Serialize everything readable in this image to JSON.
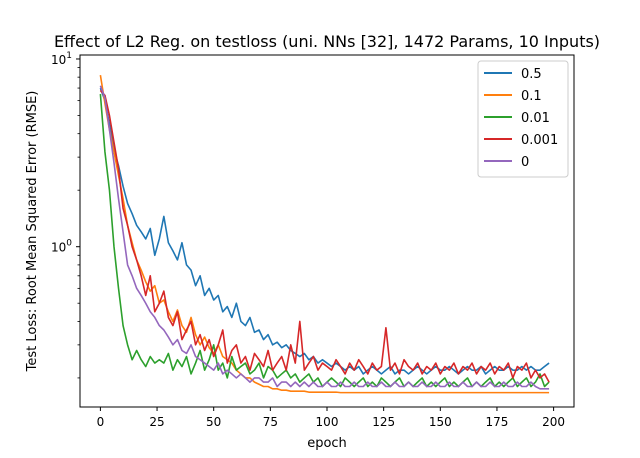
{
  "chart_data": {
    "type": "line",
    "title": "Effect of L2 Reg. on testloss (uni. NNs [32], 1472 Params, 10 Inputs)",
    "xlabel": "epoch",
    "ylabel": "Test Loss: Root Mean Squared Error (RMSE)",
    "xlim": [
      -9,
      209
    ],
    "ylim": [
      0.14,
      10.5
    ],
    "yscale": "log",
    "x_ticks": [
      0,
      25,
      50,
      75,
      100,
      125,
      150,
      175,
      200
    ],
    "y_major_ticks": [
      {
        "value": 1,
        "label": "10^0"
      },
      {
        "value": 10,
        "label": "10^1"
      }
    ],
    "grid": false,
    "legend_position": "top-right",
    "x_step": 2,
    "series": [
      {
        "name": "0.5",
        "color": "#1f77b4",
        "values": [
          7.0,
          6.0,
          4.5,
          3.3,
          2.7,
          2.1,
          1.7,
          1.5,
          1.3,
          1.2,
          1.1,
          1.25,
          0.9,
          1.1,
          1.45,
          1.05,
          0.95,
          0.85,
          1.05,
          0.8,
          0.75,
          0.62,
          0.7,
          0.55,
          0.6,
          0.52,
          0.55,
          0.45,
          0.48,
          0.42,
          0.5,
          0.4,
          0.38,
          0.42,
          0.35,
          0.36,
          0.32,
          0.34,
          0.3,
          0.31,
          0.29,
          0.3,
          0.28,
          0.27,
          0.26,
          0.27,
          0.25,
          0.26,
          0.24,
          0.25,
          0.24,
          0.23,
          0.24,
          0.23,
          0.22,
          0.23,
          0.22,
          0.23,
          0.21,
          0.22,
          0.23,
          0.22,
          0.21,
          0.22,
          0.23,
          0.21,
          0.22,
          0.22,
          0.21,
          0.22,
          0.23,
          0.22,
          0.21,
          0.22,
          0.23,
          0.22,
          0.22,
          0.23,
          0.22,
          0.21,
          0.22,
          0.23,
          0.22,
          0.22,
          0.23,
          0.21,
          0.22,
          0.23,
          0.22,
          0.22,
          0.23,
          0.22,
          0.22,
          0.23,
          0.22,
          0.23,
          0.22,
          0.22,
          0.23,
          0.24
        ]
      },
      {
        "name": "0.1",
        "color": "#ff7f0e",
        "values": [
          8.2,
          5.8,
          4.2,
          3.2,
          2.4,
          1.8,
          1.3,
          1.05,
          0.85,
          0.75,
          0.65,
          0.58,
          0.62,
          0.5,
          0.52,
          0.45,
          0.4,
          0.46,
          0.38,
          0.35,
          0.42,
          0.34,
          0.3,
          0.33,
          0.29,
          0.27,
          0.3,
          0.26,
          0.25,
          0.24,
          0.22,
          0.21,
          0.2,
          0.2,
          0.19,
          0.185,
          0.18,
          0.18,
          0.175,
          0.175,
          0.172,
          0.172,
          0.17,
          0.17,
          0.17,
          0.17,
          0.168,
          0.168,
          0.168,
          0.168,
          0.168,
          0.168,
          0.168,
          0.167,
          0.167,
          0.167,
          0.167,
          0.167,
          0.167,
          0.167,
          0.167,
          0.167,
          0.167,
          0.167,
          0.167,
          0.167,
          0.167,
          0.167,
          0.167,
          0.167,
          0.167,
          0.167,
          0.167,
          0.167,
          0.167,
          0.167,
          0.167,
          0.167,
          0.167,
          0.167,
          0.167,
          0.167,
          0.167,
          0.167,
          0.167,
          0.167,
          0.167,
          0.167,
          0.167,
          0.167,
          0.167,
          0.167,
          0.167,
          0.167,
          0.167,
          0.167,
          0.167,
          0.167,
          0.167,
          0.167
        ]
      },
      {
        "name": "0.01",
        "color": "#2ca02c",
        "values": [
          6.5,
          3.2,
          2.0,
          1.0,
          0.6,
          0.38,
          0.3,
          0.25,
          0.28,
          0.25,
          0.23,
          0.26,
          0.24,
          0.25,
          0.24,
          0.27,
          0.22,
          0.25,
          0.23,
          0.26,
          0.21,
          0.24,
          0.28,
          0.22,
          0.25,
          0.3,
          0.22,
          0.24,
          0.2,
          0.26,
          0.22,
          0.23,
          0.24,
          0.21,
          0.22,
          0.24,
          0.2,
          0.23,
          0.22,
          0.2,
          0.21,
          0.22,
          0.2,
          0.21,
          0.19,
          0.2,
          0.21,
          0.19,
          0.2,
          0.18,
          0.19,
          0.2,
          0.19,
          0.18,
          0.2,
          0.19,
          0.18,
          0.19,
          0.2,
          0.18,
          0.19,
          0.18,
          0.2,
          0.19,
          0.18,
          0.19,
          0.2,
          0.18,
          0.19,
          0.18,
          0.19,
          0.2,
          0.18,
          0.19,
          0.18,
          0.19,
          0.2,
          0.18,
          0.19,
          0.18,
          0.19,
          0.2,
          0.18,
          0.19,
          0.18,
          0.19,
          0.2,
          0.18,
          0.19,
          0.18,
          0.19,
          0.2,
          0.18,
          0.19,
          0.2,
          0.18,
          0.19,
          0.21,
          0.18,
          0.19
        ]
      },
      {
        "name": "0.001",
        "color": "#d62728",
        "values": [
          6.8,
          6.4,
          5.0,
          3.6,
          2.6,
          1.6,
          1.3,
          1.0,
          0.85,
          0.7,
          0.55,
          0.7,
          0.45,
          0.5,
          0.58,
          0.42,
          0.38,
          0.45,
          0.32,
          0.36,
          0.4,
          0.3,
          0.34,
          0.28,
          0.32,
          0.26,
          0.3,
          0.36,
          0.24,
          0.28,
          0.3,
          0.24,
          0.26,
          0.22,
          0.27,
          0.25,
          0.23,
          0.28,
          0.22,
          0.24,
          0.26,
          0.22,
          0.3,
          0.24,
          0.4,
          0.22,
          0.24,
          0.26,
          0.22,
          0.24,
          0.23,
          0.22,
          0.25,
          0.23,
          0.21,
          0.24,
          0.22,
          0.25,
          0.23,
          0.21,
          0.24,
          0.22,
          0.23,
          0.37,
          0.22,
          0.24,
          0.21,
          0.25,
          0.23,
          0.22,
          0.24,
          0.21,
          0.23,
          0.22,
          0.24,
          0.21,
          0.23,
          0.22,
          0.24,
          0.21,
          0.23,
          0.22,
          0.24,
          0.21,
          0.23,
          0.22,
          0.24,
          0.21,
          0.23,
          0.22,
          0.24,
          0.2,
          0.23,
          0.22,
          0.24,
          0.2,
          0.22,
          0.2,
          0.21,
          0.19
        ]
      },
      {
        "name": "0",
        "color": "#9467bd",
        "values": [
          7.2,
          6.2,
          4.2,
          2.8,
          1.8,
          1.2,
          0.8,
          0.7,
          0.6,
          0.55,
          0.5,
          0.45,
          0.42,
          0.38,
          0.36,
          0.33,
          0.3,
          0.32,
          0.28,
          0.27,
          0.3,
          0.26,
          0.25,
          0.24,
          0.23,
          0.22,
          0.24,
          0.21,
          0.22,
          0.21,
          0.2,
          0.21,
          0.2,
          0.19,
          0.2,
          0.2,
          0.19,
          0.19,
          0.2,
          0.18,
          0.19,
          0.19,
          0.18,
          0.19,
          0.18,
          0.19,
          0.18,
          0.19,
          0.18,
          0.18,
          0.19,
          0.18,
          0.18,
          0.19,
          0.18,
          0.18,
          0.19,
          0.18,
          0.18,
          0.19,
          0.18,
          0.18,
          0.19,
          0.18,
          0.18,
          0.19,
          0.18,
          0.18,
          0.19,
          0.18,
          0.18,
          0.19,
          0.18,
          0.18,
          0.19,
          0.18,
          0.18,
          0.19,
          0.18,
          0.18,
          0.19,
          0.18,
          0.18,
          0.19,
          0.18,
          0.18,
          0.19,
          0.18,
          0.18,
          0.19,
          0.18,
          0.18,
          0.19,
          0.18,
          0.18,
          0.19,
          0.18,
          0.175,
          0.175,
          0.175
        ]
      }
    ]
  }
}
